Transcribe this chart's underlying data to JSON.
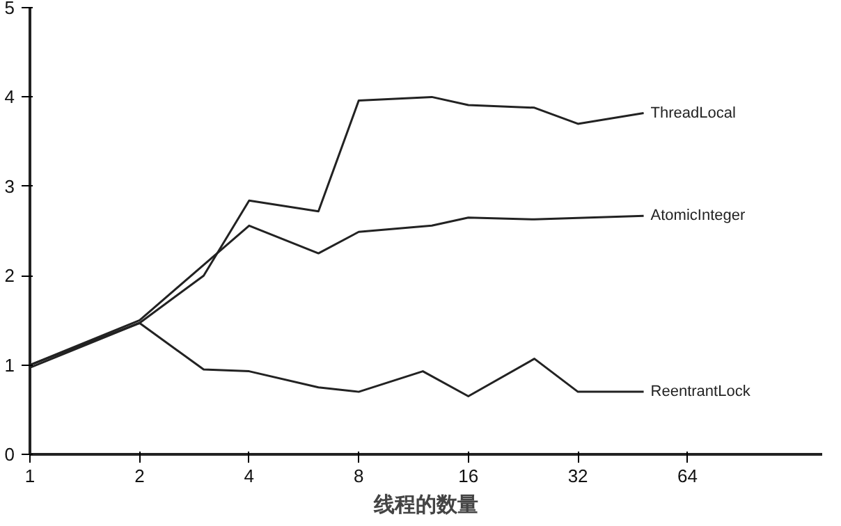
{
  "chart_data": {
    "type": "line",
    "xlabel": "线程的数量",
    "log": "x",
    "xlim": [
      1,
      150
    ],
    "ylim": [
      0,
      5
    ],
    "xticks": [
      1,
      2,
      4,
      8,
      16,
      32,
      64
    ],
    "yticks": [
      0,
      1,
      2,
      3,
      4,
      5
    ],
    "grid": false,
    "marker": "none",
    "line_style": "solid",
    "series": [
      {
        "name": "ThreadLocal",
        "color": "#222222",
        "x": [
          1,
          2,
          3,
          4,
          6.2,
          8,
          12.7,
          16,
          24.3,
          32,
          48.5
        ],
        "values": [
          1.0,
          1.47,
          2.0,
          2.84,
          2.72,
          3.96,
          4.0,
          3.91,
          3.88,
          3.7,
          3.82
        ]
      },
      {
        "name": "AtomicInteger",
        "color": "#222222",
        "x": [
          1,
          2,
          4,
          6.2,
          8,
          12.7,
          16,
          24.3,
          48.5
        ],
        "values": [
          1.0,
          1.5,
          2.56,
          2.25,
          2.49,
          2.56,
          2.65,
          2.63,
          2.67
        ]
      },
      {
        "name": "ReentrantLock",
        "color": "#222222",
        "x": [
          1,
          2,
          3,
          4,
          6.2,
          8,
          12,
          16,
          24.3,
          32,
          48.5
        ],
        "values": [
          0.97,
          1.47,
          0.95,
          0.93,
          0.75,
          0.7,
          0.93,
          0.65,
          1.07,
          0.7,
          0.7
        ]
      }
    ]
  }
}
